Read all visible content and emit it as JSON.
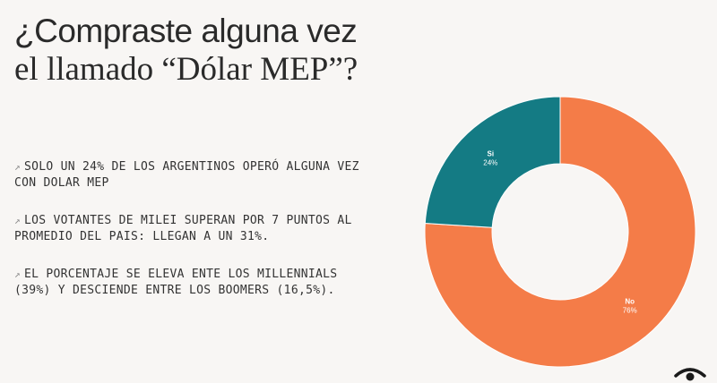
{
  "title": {
    "line1": "¿Compraste alguna vez",
    "line2": "el llamado “Dólar MEP”?"
  },
  "bullets": [
    {
      "arrow": "↗",
      "text": "SOLO UN 24% DE LOS ARGENTINOS OPERÓ ALGUNA VEZ CON DOLAR MEP"
    },
    {
      "arrow": "↗",
      "text": "LOS VOTANTES DE MILEI SUPERAN POR 7 PUNTOS AL PROMEDIO DEL PAIS: LLEGAN A UN 31%."
    },
    {
      "arrow": "↗",
      "text": "EL PORCENTAJE SE ELEVA ENTE LOS MILLENNIALS (39%) Y DESCIENDE ENTRE LOS BOOMERS (16,5%)."
    }
  ],
  "chart_data": {
    "type": "pie",
    "donut": true,
    "slices": [
      {
        "label": "No",
        "value": 76,
        "value_label": "76%",
        "color": "#f47c48"
      },
      {
        "label": "Si",
        "value": 24,
        "value_label": "24%",
        "color": "#147b84"
      }
    ]
  },
  "logo": {
    "icon": "eye-icon"
  }
}
